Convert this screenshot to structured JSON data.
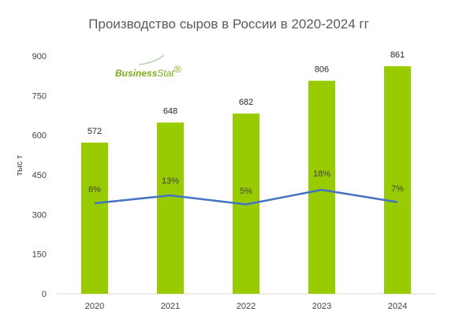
{
  "logo": {
    "part1": "Business",
    "part2": "Stat",
    "mark": "®"
  },
  "chart_data": {
    "type": "bar",
    "title": "Производство сыров в России в 2020-2024 гг",
    "ylabel": "тыс т",
    "xlabel": "",
    "ylim": [
      0,
      900
    ],
    "yticks": [
      0,
      150,
      300,
      450,
      600,
      750,
      900
    ],
    "categories": [
      "2020",
      "2021",
      "2022",
      "2023",
      "2024"
    ],
    "series": [
      {
        "type": "bar",
        "values": [
          572,
          648,
          682,
          806,
          861
        ],
        "color": "#99cc00"
      },
      {
        "type": "line",
        "values": [
          6,
          13,
          5,
          18,
          7
        ],
        "labels": [
          "6%",
          "13%",
          "5%",
          "18%",
          "7%"
        ],
        "color": "#4472c4"
      }
    ],
    "grid": false,
    "legend": "none"
  }
}
